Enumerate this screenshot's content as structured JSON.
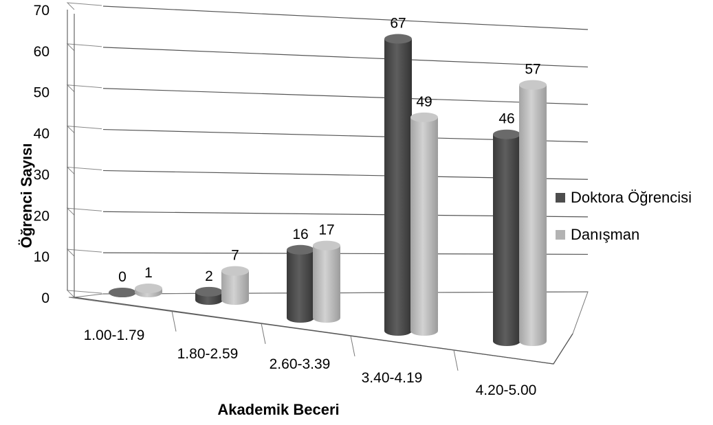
{
  "chart_data": {
    "type": "bar",
    "title": "",
    "xlabel": "Akademik Beceri",
    "ylabel": "Öğrenci Sayısı",
    "ylim": [
      0,
      70
    ],
    "yticks": [
      "0",
      "10",
      "20",
      "30",
      "40",
      "50",
      "60",
      "70"
    ],
    "categories": [
      "1.00-1.79",
      "1.80-2.59",
      "2.60-3.39",
      "3.40-4.19",
      "4.20-5.00"
    ],
    "series": [
      {
        "name": "Doktora Öğrencisi",
        "values": [
          0,
          2,
          16,
          67,
          46
        ],
        "color": "#4d4d4d"
      },
      {
        "name": "Danışman",
        "values": [
          1,
          7,
          17,
          49,
          57
        ],
        "color": "#b3b3b3"
      }
    ],
    "grid": true,
    "legend_position": "right",
    "style": "3d-cylinder"
  }
}
